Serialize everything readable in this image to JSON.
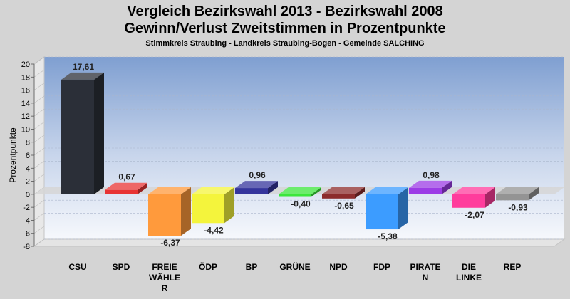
{
  "chart_data": {
    "type": "bar",
    "title": "Vergleich Bezirkswahl 2013 - Bezirkswahl 2008",
    "title2": "Gewinn/Verlust Zweitstimmen in Prozentpunkte",
    "subtitle": "Stimmkreis Straubing - Landkreis Straubing-Bogen - Gemeinde SALCHING",
    "ylabel": "Prozentpunkte",
    "xlabel": "",
    "ylim": [
      -8,
      20
    ],
    "yticks": [
      20,
      18,
      16,
      14,
      12,
      10,
      8,
      6,
      4,
      2,
      0,
      -2,
      -4,
      -6,
      -8
    ],
    "grid": true,
    "categories": [
      [
        "CSU"
      ],
      [
        "SPD"
      ],
      [
        "FREIE",
        "WÄHLE",
        "R"
      ],
      [
        "ÖDP"
      ],
      [
        "BP"
      ],
      [
        "GRÜNE"
      ],
      [
        "NPD"
      ],
      [
        "FDP"
      ],
      [
        "PIRATE",
        "N"
      ],
      [
        "DIE",
        "LINKE"
      ],
      [
        "REP"
      ]
    ],
    "values": [
      17.61,
      0.67,
      -6.37,
      -4.42,
      0.96,
      -0.4,
      -0.65,
      -5.38,
      0.98,
      -2.07,
      -0.93
    ],
    "value_labels": [
      "17,61",
      "0,67",
      "-6,37",
      "-4,42",
      "0,96",
      "-0,40",
      "-0,65",
      "-5,38",
      "0,98",
      "-2,07",
      "-0,93"
    ],
    "colors": [
      "#2b2f38",
      "#e83434",
      "#ff9a3c",
      "#f4f43c",
      "#34349c",
      "#3ce63c",
      "#8c2c2c",
      "#3c9cff",
      "#9c3ce6",
      "#ff3c9c",
      "#949494"
    ]
  }
}
